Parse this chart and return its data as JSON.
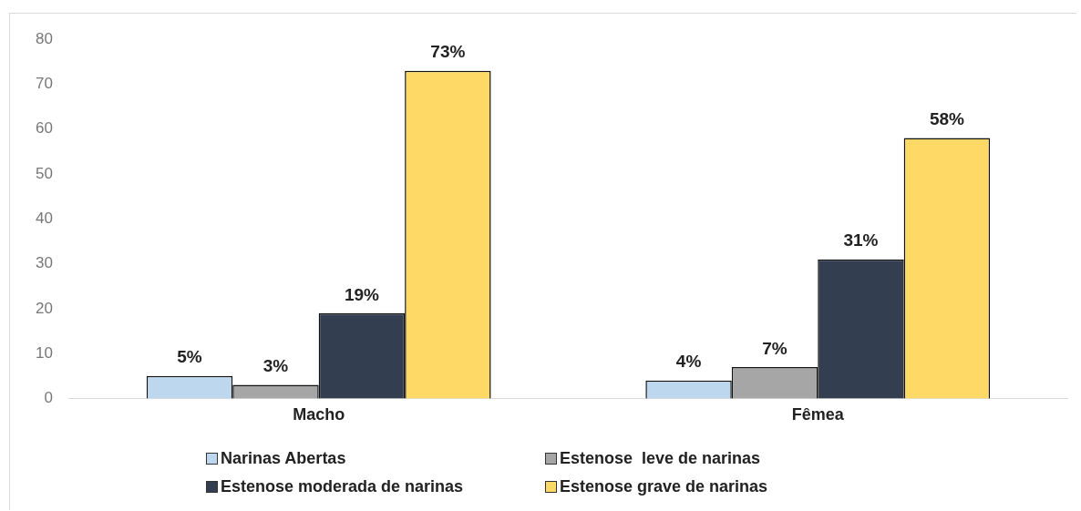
{
  "chart_data": {
    "type": "bar",
    "categories": [
      "Macho",
      "Fêmea"
    ],
    "series": [
      {
        "name": "Narinas Abertas",
        "color": "#bdd7ee",
        "values": [
          5,
          4
        ],
        "value_labels": [
          "5%",
          "4%"
        ]
      },
      {
        "name": "Estenose  leve de narinas",
        "color": "#a6a6a6",
        "values": [
          3,
          7
        ],
        "value_labels": [
          "3%",
          "7%"
        ]
      },
      {
        "name": "Estenose moderada de narinas",
        "color": "#333f50",
        "values": [
          19,
          31
        ],
        "value_labels": [
          "19%",
          "31%"
        ]
      },
      {
        "name": "Estenose grave de narinas",
        "color": "#ffd966",
        "values": [
          73,
          58
        ],
        "value_labels": [
          "73%",
          "58%"
        ]
      }
    ],
    "ylim": [
      0,
      80
    ],
    "yticks": [
      0,
      10,
      20,
      30,
      40,
      50,
      60,
      70,
      80
    ],
    "grid": false,
    "legend": "bottom"
  }
}
